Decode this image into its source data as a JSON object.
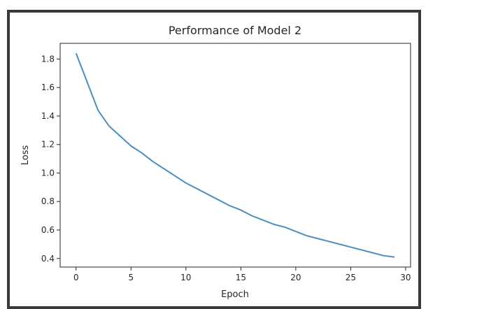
{
  "chart_data": {
    "type": "line",
    "title": "Performance of Model 2",
    "xlabel": "Epoch",
    "ylabel": "Loss",
    "xlim": [
      -1.45,
      30.45
    ],
    "ylim": [
      0.34,
      1.91
    ],
    "xticks": [
      0,
      5,
      10,
      15,
      20,
      25,
      30
    ],
    "yticks": [
      0.4,
      0.6,
      0.8,
      1.0,
      1.2,
      1.4,
      1.6,
      1.8
    ],
    "xtick_labels": [
      "0",
      "5",
      "10",
      "15",
      "20",
      "25",
      "30"
    ],
    "ytick_labels": [
      "0.4",
      "0.6",
      "0.8",
      "1.0",
      "1.2",
      "1.4",
      "1.6",
      "1.8"
    ],
    "grid": false,
    "line_color": "#4b8ec2",
    "series": [
      {
        "x": [
          0,
          1,
          2,
          3,
          4,
          5,
          6,
          7,
          8,
          9,
          10,
          11,
          12,
          13,
          14,
          15,
          16,
          17,
          18,
          19,
          20,
          21,
          22,
          23,
          24,
          25,
          26,
          27,
          28,
          29
        ],
        "values": [
          1.84,
          1.64,
          1.44,
          1.33,
          1.26,
          1.19,
          1.14,
          1.08,
          1.03,
          0.98,
          0.93,
          0.89,
          0.85,
          0.81,
          0.77,
          0.74,
          0.7,
          0.67,
          0.64,
          0.62,
          0.59,
          0.56,
          0.54,
          0.52,
          0.5,
          0.48,
          0.46,
          0.44,
          0.42,
          0.41
        ]
      }
    ]
  }
}
